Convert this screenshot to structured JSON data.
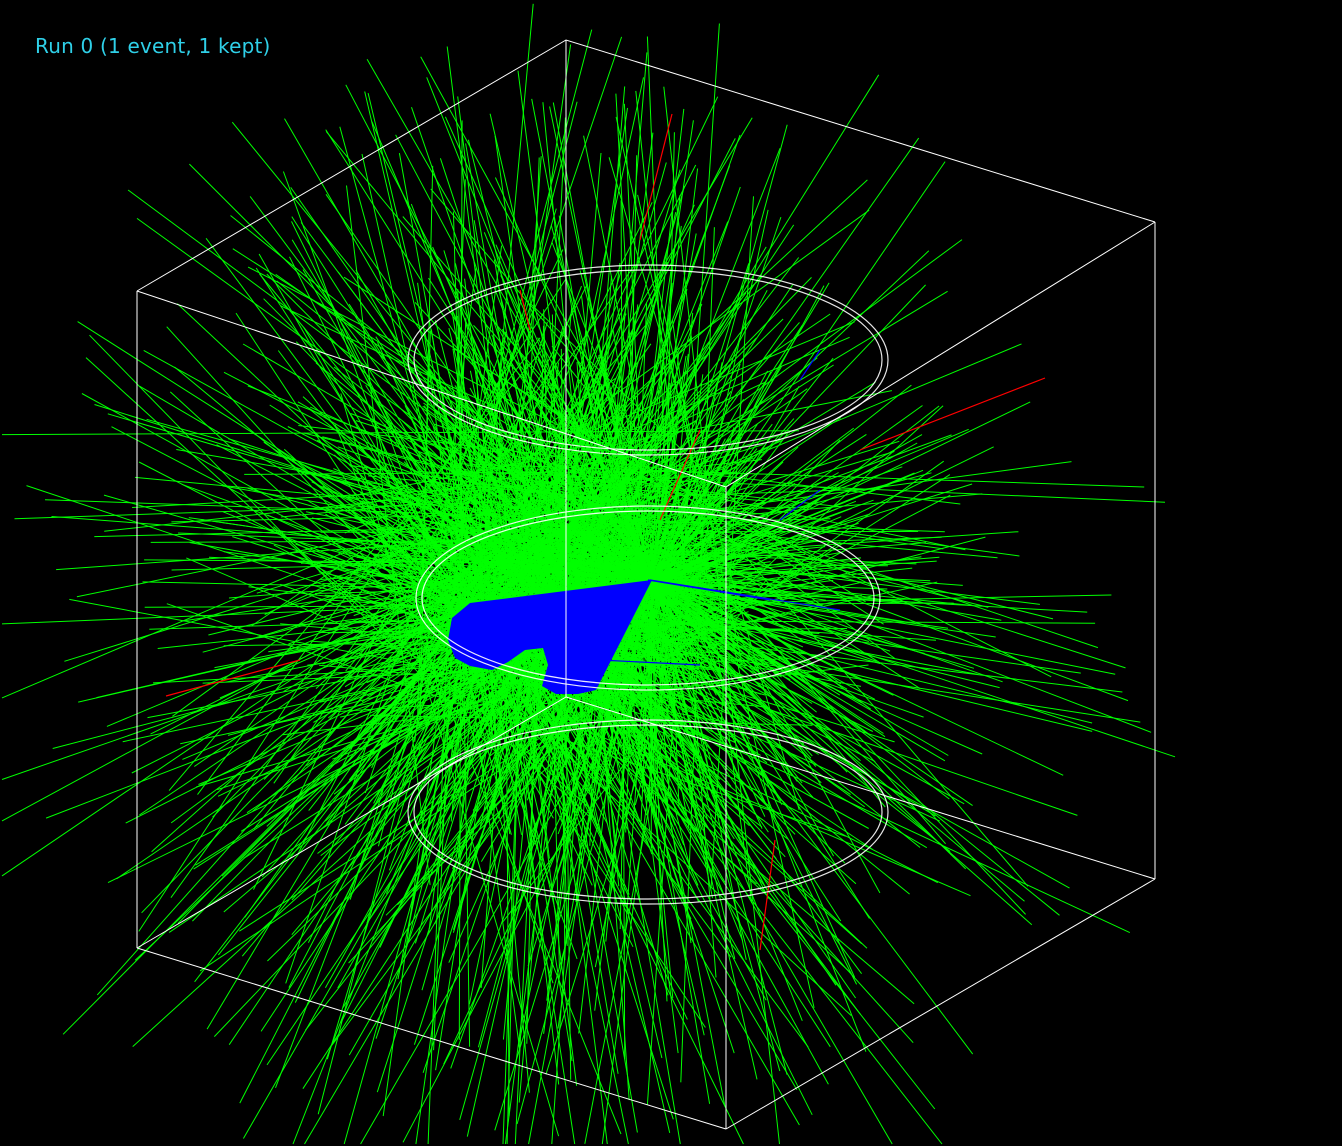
{
  "header": {
    "run_label": "Run 0 (1 event, 1 kept)"
  },
  "colors": {
    "background": "#000000",
    "label": "#2fd0e8",
    "geometry": "#ffffff",
    "gamma_tracks": "#00ff00",
    "negative_tracks": "#ff0000",
    "positive_tracks": "#0000ff"
  }
}
